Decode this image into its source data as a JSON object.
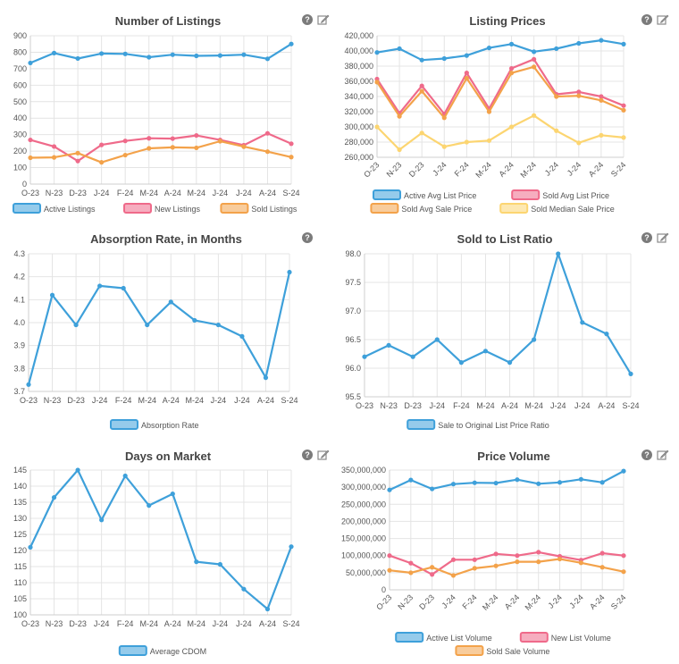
{
  "chart_data": [
    {
      "id": "listings",
      "type": "line",
      "title": "Number of Listings",
      "categories": [
        "O-23",
        "N-23",
        "D-23",
        "J-24",
        "F-24",
        "M-24",
        "A-24",
        "M-24",
        "J-24",
        "J-24",
        "A-24",
        "S-24"
      ],
      "ylim": [
        0,
        900
      ],
      "yticks": [
        0,
        100,
        200,
        300,
        400,
        500,
        600,
        700,
        800,
        900
      ],
      "rotate_x": false,
      "series": [
        {
          "name": "Active Listings",
          "color": "#3ea0da",
          "values": [
            735,
            795,
            762,
            792,
            790,
            770,
            785,
            778,
            780,
            785,
            760,
            850
          ]
        },
        {
          "name": "New Listings",
          "color": "#ef6a8a",
          "values": [
            268,
            228,
            140,
            238,
            262,
            278,
            276,
            295,
            268,
            236,
            308,
            245
          ]
        },
        {
          "name": "Sold Listings",
          "color": "#f3a24a",
          "values": [
            160,
            162,
            188,
            132,
            176,
            217,
            223,
            220,
            260,
            227,
            197,
            164
          ]
        }
      ],
      "grid": true,
      "legend": "bottom",
      "icons": [
        "help-icon",
        "edit-icon"
      ]
    },
    {
      "id": "prices",
      "type": "line",
      "title": "Listing Prices",
      "categories": [
        "O-23",
        "N-23",
        "D-23",
        "J-24",
        "F-24",
        "M-24",
        "A-24",
        "M-24",
        "J-24",
        "J-24",
        "A-24",
        "S-24"
      ],
      "ylim": [
        260000,
        420000
      ],
      "yticks": [
        260000,
        280000,
        300000,
        320000,
        340000,
        360000,
        380000,
        400000,
        420000
      ],
      "ytick_labels": [
        "260,000",
        "280,000",
        "300,000",
        "320,000",
        "340,000",
        "360,000",
        "380,000",
        "400,000",
        "420,000"
      ],
      "rotate_x": true,
      "series": [
        {
          "name": "Active Avg List Price",
          "color": "#3ea0da",
          "values": [
            398000,
            403000,
            388000,
            390000,
            394000,
            404000,
            409000,
            399000,
            403000,
            410000,
            414000,
            409000
          ]
        },
        {
          "name": "Sold Avg List Price",
          "color": "#ef6a8a",
          "values": [
            363000,
            318000,
            354000,
            317000,
            371000,
            324000,
            377000,
            389000,
            343000,
            346000,
            340000,
            328000
          ]
        },
        {
          "name": "Sold Avg Sale Price",
          "color": "#f3a24a",
          "values": [
            359000,
            314000,
            347000,
            312000,
            364000,
            320000,
            371000,
            379000,
            340000,
            341000,
            335000,
            322000
          ]
        },
        {
          "name": "Sold Median Sale Price",
          "color": "#fcd571",
          "values": [
            300000,
            270000,
            292000,
            274000,
            280000,
            282000,
            300000,
            315000,
            295000,
            279000,
            289000,
            286000
          ]
        }
      ],
      "grid": true,
      "legend": "bottom",
      "icons": [
        "help-icon",
        "edit-icon"
      ]
    },
    {
      "id": "absorption",
      "type": "line",
      "title": "Absorption Rate, in Months",
      "categories": [
        "O-23",
        "N-23",
        "D-23",
        "J-24",
        "F-24",
        "M-24",
        "A-24",
        "M-24",
        "J-24",
        "J-24",
        "A-24",
        "S-24"
      ],
      "ylim": [
        3.7,
        4.3
      ],
      "yticks": [
        3.7,
        3.8,
        3.9,
        4.0,
        4.1,
        4.2,
        4.3
      ],
      "ytick_labels": [
        "3.7",
        "3.8",
        "3.9",
        "4.0",
        "4.1",
        "4.2",
        "4.3"
      ],
      "rotate_x": false,
      "series": [
        {
          "name": "Absorption Rate",
          "color": "#3ea0da",
          "values": [
            3.73,
            4.12,
            3.99,
            4.16,
            4.15,
            3.99,
            4.09,
            4.01,
            3.99,
            3.94,
            3.76,
            4.22
          ]
        }
      ],
      "grid": true,
      "legend": "bottom",
      "icons": [
        "help-icon"
      ]
    },
    {
      "id": "ratio",
      "type": "line",
      "title": "Sold to List Ratio",
      "categories": [
        "O-23",
        "N-23",
        "D-23",
        "J-24",
        "F-24",
        "M-24",
        "A-24",
        "M-24",
        "J-24",
        "J-24",
        "A-24",
        "S-24"
      ],
      "ylim": [
        95.5,
        98.0
      ],
      "yticks": [
        95.5,
        96.0,
        96.5,
        97.0,
        97.5,
        98.0
      ],
      "ytick_labels": [
        "95.5",
        "96.0",
        "96.5",
        "97.0",
        "97.5",
        "98.0"
      ],
      "rotate_x": false,
      "series": [
        {
          "name": "Sale to Original List Price Ratio",
          "color": "#3ea0da",
          "values": [
            96.2,
            96.4,
            96.2,
            96.5,
            96.1,
            96.3,
            96.1,
            96.5,
            98.0,
            96.8,
            96.6,
            95.9
          ]
        }
      ],
      "grid": true,
      "legend": "bottom",
      "icons": [
        "help-icon",
        "edit-icon"
      ]
    },
    {
      "id": "dom",
      "type": "line",
      "title": "Days on Market",
      "categories": [
        "O-23",
        "N-23",
        "D-23",
        "J-24",
        "F-24",
        "M-24",
        "A-24",
        "M-24",
        "J-24",
        "J-24",
        "A-24",
        "S-24"
      ],
      "ylim": [
        100,
        145
      ],
      "yticks": [
        100,
        105,
        110,
        115,
        120,
        125,
        130,
        135,
        140,
        145
      ],
      "rotate_x": false,
      "series": [
        {
          "name": "Average CDOM",
          "color": "#3ea0da",
          "values": [
            121,
            136.5,
            145,
            129.5,
            143.2,
            134,
            137.6,
            116.5,
            115.7,
            108,
            101.8,
            121.2
          ]
        }
      ],
      "grid": true,
      "legend": "bottom",
      "icons": [
        "help-icon",
        "edit-icon"
      ]
    },
    {
      "id": "volume",
      "type": "line",
      "title": "Price Volume",
      "categories": [
        "O-23",
        "N-23",
        "D-23",
        "J-24",
        "F-24",
        "M-24",
        "A-24",
        "M-24",
        "J-24",
        "J-24",
        "A-24",
        "S-24"
      ],
      "ylim": [
        0,
        350000000
      ],
      "yticks": [
        0,
        50000000,
        100000000,
        150000000,
        200000000,
        250000000,
        300000000,
        350000000
      ],
      "ytick_labels": [
        "0",
        "50,000,000",
        "100,000,000",
        "150,000,000",
        "200,000,000",
        "250,000,000",
        "300,000,000",
        "350,000,000"
      ],
      "rotate_x": true,
      "series": [
        {
          "name": "Active List Volume",
          "color": "#3ea0da",
          "values": [
            292000000,
            321000000,
            295000000,
            309000000,
            313000000,
            312000000,
            322000000,
            310000000,
            314000000,
            323000000,
            314000000,
            347000000
          ]
        },
        {
          "name": "New List Volume",
          "color": "#ef6a8a",
          "values": [
            100000000,
            78000000,
            45000000,
            88000000,
            88000000,
            105000000,
            100000000,
            110000000,
            98000000,
            87000000,
            107000000,
            100000000
          ]
        },
        {
          "name": "Sold Sale Volume",
          "color": "#f3a24a",
          "values": [
            57000000,
            50000000,
            66000000,
            42000000,
            63000000,
            70000000,
            82000000,
            82000000,
            90000000,
            79000000,
            66000000,
            53000000
          ]
        }
      ],
      "grid": true,
      "legend": "bottom",
      "icons": [
        "help-icon",
        "edit-icon"
      ]
    }
  ]
}
